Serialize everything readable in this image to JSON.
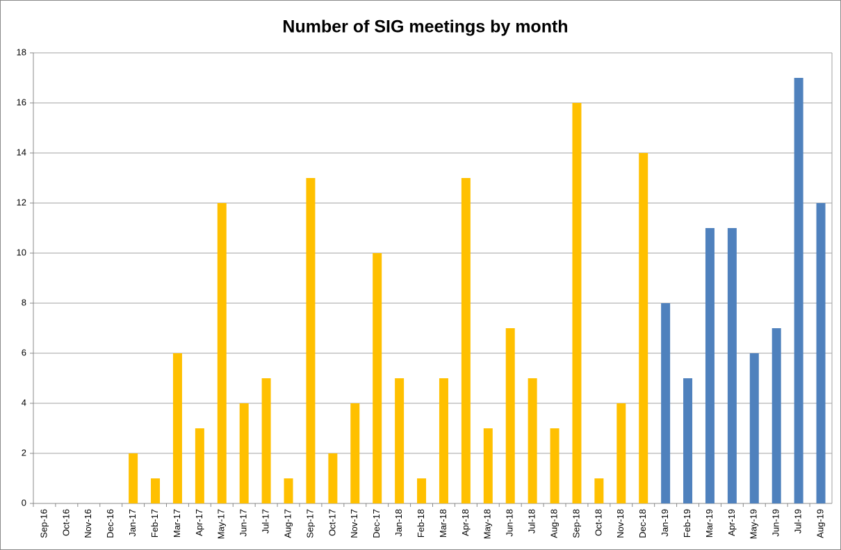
{
  "chart_data": {
    "type": "bar",
    "title": "Number of SIG meetings by month",
    "categories": [
      "Sep-16",
      "Oct-16",
      "Nov-16",
      "Dec-16",
      "Jan-17",
      "Feb-17",
      "Mar-17",
      "Apr-17",
      "May-17",
      "Jun-17",
      "Jul-17",
      "Aug-17",
      "Sep-17",
      "Oct-17",
      "Nov-17",
      "Dec-17",
      "Jan-18",
      "Feb-18",
      "Mar-18",
      "Apr-18",
      "May-18",
      "Jun-18",
      "Jul-18",
      "Aug-18",
      "Sep-18",
      "Oct-18",
      "Nov-18",
      "Dec-18",
      "Jan-19",
      "Feb-19",
      "Mar-19",
      "Apr-19",
      "May-19",
      "Jun-19",
      "Jul-19",
      "Aug-19"
    ],
    "values": [
      0,
      0,
      0,
      0,
      2,
      1,
      6,
      3,
      12,
      4,
      5,
      1,
      13,
      2,
      4,
      10,
      5,
      1,
      5,
      13,
      3,
      7,
      5,
      3,
      16,
      1,
      4,
      14,
      8,
      5,
      11,
      11,
      6,
      7,
      17,
      12
    ],
    "colors": [
      "#ffc000",
      "#ffc000",
      "#ffc000",
      "#ffc000",
      "#ffc000",
      "#ffc000",
      "#ffc000",
      "#ffc000",
      "#ffc000",
      "#ffc000",
      "#ffc000",
      "#ffc000",
      "#ffc000",
      "#ffc000",
      "#ffc000",
      "#ffc000",
      "#ffc000",
      "#ffc000",
      "#ffc000",
      "#ffc000",
      "#ffc000",
      "#ffc000",
      "#ffc000",
      "#ffc000",
      "#ffc000",
      "#ffc000",
      "#ffc000",
      "#ffc000",
      "#4f81bd",
      "#4f81bd",
      "#4f81bd",
      "#4f81bd",
      "#4f81bd",
      "#4f81bd",
      "#4f81bd",
      "#4f81bd"
    ],
    "ylim": [
      0,
      18
    ],
    "yticks": [
      0,
      2,
      4,
      6,
      8,
      10,
      12,
      14,
      16,
      18
    ],
    "grid": true
  }
}
